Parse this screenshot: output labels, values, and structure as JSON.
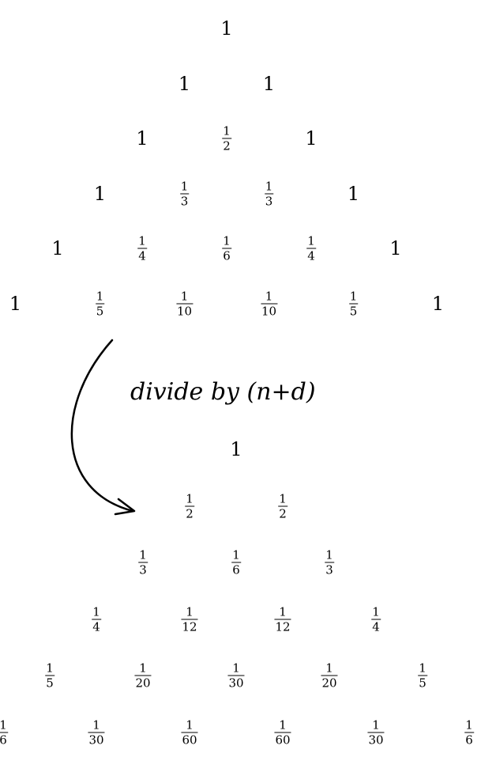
{
  "top_triangle": [
    [
      "1"
    ],
    [
      "1",
      "1"
    ],
    [
      "1",
      "1/2",
      "1"
    ],
    [
      "1",
      "1/3",
      "1/3",
      "1"
    ],
    [
      "1",
      "1/4",
      "1/6",
      "1/4",
      "1"
    ],
    [
      "1",
      "1/5",
      "1/10",
      "1/10",
      "1/5",
      "1"
    ]
  ],
  "operation_label": "divide by (n+d)",
  "bottom_triangle": [
    [
      "1"
    ],
    [
      "1/2",
      "1/2"
    ],
    [
      "1/3",
      "1/6",
      "1/3"
    ],
    [
      "1/4",
      "1/12",
      "1/12",
      "1/4"
    ],
    [
      "1/5",
      "1/20",
      "1/30",
      "1/20",
      "1/5"
    ],
    [
      "1/6",
      "1/30",
      "1/60",
      "1/60",
      "1/30",
      "1/6"
    ]
  ]
}
